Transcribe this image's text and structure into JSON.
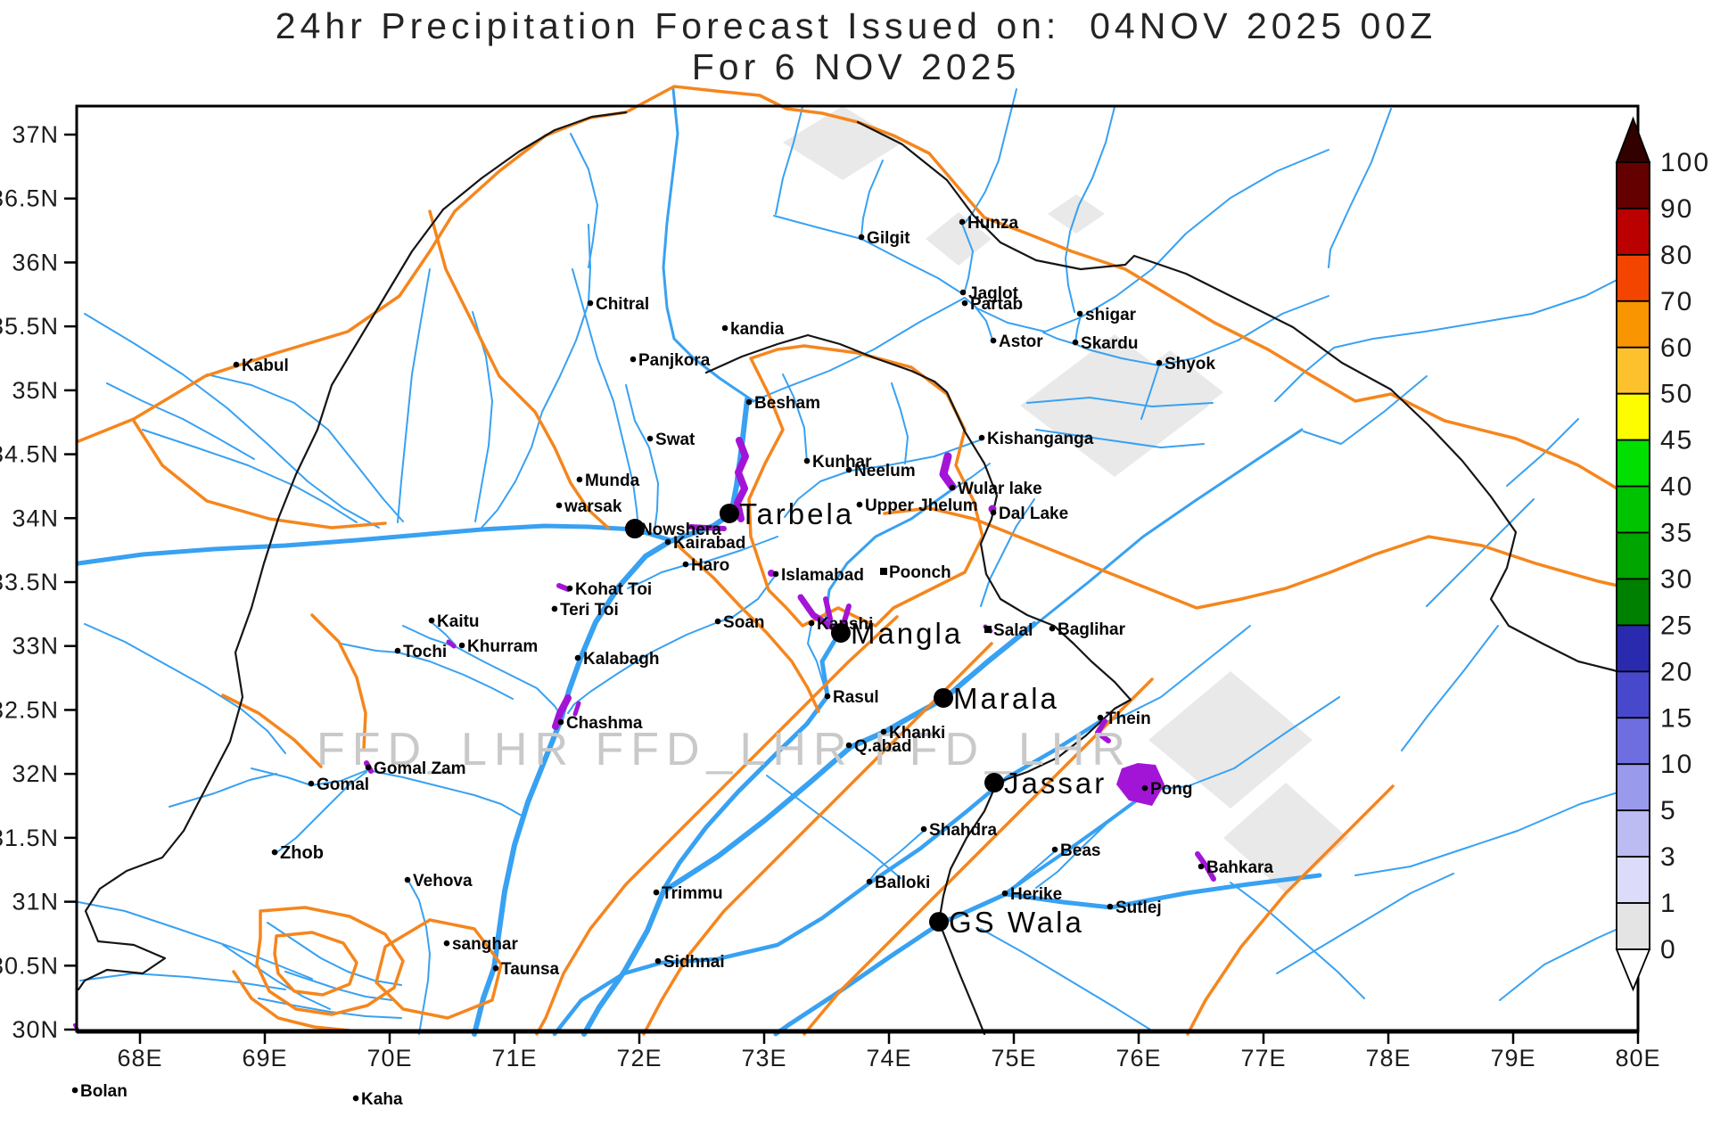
{
  "title": {
    "line1": "24hr Precipitation Forecast Issued on:  04NOV 2025 00Z",
    "line2": "For 6 NOV 2025"
  },
  "watermark": {
    "text": "FFD_LHR FFD_LHR FFD_LHR"
  },
  "axis": {
    "lon_range": [
      67.49,
      80.0
    ],
    "lat_range": [
      30.0,
      37.22
    ],
    "lon_ticks": [
      {
        "v": 68,
        "t": "68E"
      },
      {
        "v": 69,
        "t": "69E"
      },
      {
        "v": 70,
        "t": "70E"
      },
      {
        "v": 71,
        "t": "71E"
      },
      {
        "v": 72,
        "t": "72E"
      },
      {
        "v": 73,
        "t": "73E"
      },
      {
        "v": 74,
        "t": "74E"
      },
      {
        "v": 75,
        "t": "75E"
      },
      {
        "v": 76,
        "t": "76E"
      },
      {
        "v": 77,
        "t": "77E"
      },
      {
        "v": 78,
        "t": "78E"
      },
      {
        "v": 79,
        "t": "79E"
      },
      {
        "v": 80,
        "t": "80E"
      }
    ],
    "lat_ticks": [
      {
        "v": 37,
        "t": "37N"
      },
      {
        "v": 36.5,
        "t": "36.5N"
      },
      {
        "v": 36,
        "t": "36N"
      },
      {
        "v": 35.5,
        "t": "35.5N"
      },
      {
        "v": 35,
        "t": "35N"
      },
      {
        "v": 34.5,
        "t": "34.5N"
      },
      {
        "v": 34,
        "t": "34N"
      },
      {
        "v": 33.5,
        "t": "33.5N"
      },
      {
        "v": 33,
        "t": "33N"
      },
      {
        "v": 32.5,
        "t": "32.5N"
      },
      {
        "v": 32,
        "t": "32N"
      },
      {
        "v": 31.5,
        "t": "31.5N"
      },
      {
        "v": 31,
        "t": "31N"
      },
      {
        "v": 30.5,
        "t": "30.5N"
      },
      {
        "v": 30,
        "t": "30N"
      }
    ]
  },
  "legend": {
    "labels": [
      "100",
      "90",
      "80",
      "70",
      "60",
      "50",
      "45",
      "40",
      "35",
      "30",
      "25",
      "20",
      "15",
      "10",
      "5",
      "3",
      "1",
      "0"
    ],
    "cell_colors": [
      "#650000",
      "#bb0000",
      "#f44500",
      "#f89500",
      "#fcc12d",
      "#fdfd00",
      "#00df00",
      "#00c300",
      "#00a500",
      "#008000",
      "#2a2aae",
      "#4848cd",
      "#6e6ee1",
      "#9a9aec",
      "#bcbcf3",
      "#dcdcfa",
      "#e4e4e4"
    ],
    "above_color": "#330000",
    "below_color": "#ffffff"
  },
  "colors": {
    "river": "#38a1f2",
    "basin_boundary": "#f5861d",
    "border": "#151515",
    "lake": "#a315d6",
    "snow": "#e9e9e9",
    "watermark": "#c9c9c9",
    "text": "#1c1c1c"
  },
  "stations": [
    {
      "name": "Kabul",
      "lon": 68.771,
      "lat": 35.201,
      "m": "dot",
      "s": "small"
    },
    {
      "name": "Chitral",
      "lon": 71.607,
      "lat": 35.682,
      "m": "dot",
      "s": "small"
    },
    {
      "name": "Panjkora",
      "lon": 71.95,
      "lat": 35.243,
      "m": "dot",
      "s": "small"
    },
    {
      "name": "Gilgit",
      "lon": 73.779,
      "lat": 36.198,
      "m": "dot",
      "s": "small"
    },
    {
      "name": "Hunza",
      "lon": 74.586,
      "lat": 36.317,
      "m": "dot",
      "s": "small"
    },
    {
      "name": "Jaglot",
      "lon": 74.593,
      "lat": 35.766,
      "m": "dot",
      "s": "small"
    },
    {
      "name": "Partab",
      "lon": 74.607,
      "lat": 35.682,
      "m": "dot",
      "s": "small"
    },
    {
      "name": "shigar",
      "lon": 75.529,
      "lat": 35.599,
      "m": "dot",
      "s": "small"
    },
    {
      "name": "Astor",
      "lon": 74.836,
      "lat": 35.389,
      "m": "dot",
      "s": "small"
    },
    {
      "name": "Skardu",
      "lon": 75.493,
      "lat": 35.375,
      "m": "dot",
      "s": "small"
    },
    {
      "name": "Shyok",
      "lon": 76.164,
      "lat": 35.215,
      "m": "dot",
      "s": "small"
    },
    {
      "name": "kandia",
      "lon": 72.686,
      "lat": 35.487,
      "m": "dot",
      "s": "small"
    },
    {
      "name": "Besham",
      "lon": 72.879,
      "lat": 34.908,
      "m": "dot",
      "s": "small"
    },
    {
      "name": "Swat",
      "lon": 72.086,
      "lat": 34.622,
      "m": "dot",
      "s": "small"
    },
    {
      "name": "Munda",
      "lon": 71.521,
      "lat": 34.302,
      "m": "dot",
      "s": "small"
    },
    {
      "name": "warsak",
      "lon": 71.357,
      "lat": 34.1,
      "m": "dot",
      "s": "small"
    },
    {
      "name": "Nowshera",
      "lon": 71.964,
      "lat": 33.918,
      "m": "big",
      "s": "small"
    },
    {
      "name": "Tarbela",
      "lon": 72.721,
      "lat": 34.037,
      "m": "big",
      "s": "large"
    },
    {
      "name": "Kairabad",
      "lon": 72.229,
      "lat": 33.814,
      "m": "dot",
      "s": "small"
    },
    {
      "name": "Haro",
      "lon": 72.371,
      "lat": 33.639,
      "m": "dot",
      "s": "small"
    },
    {
      "name": "Kohat Toi",
      "lon": 71.443,
      "lat": 33.451,
      "m": "dot",
      "s": "small"
    },
    {
      "name": "Islamabad",
      "lon": 73.093,
      "lat": 33.563,
      "m": "dot",
      "s": "small"
    },
    {
      "name": "Kunhar",
      "lon": 73.343,
      "lat": 34.448,
      "m": "dot",
      "s": "small"
    },
    {
      "name": "Neelum",
      "lon": 73.679,
      "lat": 34.378,
      "m": "dot",
      "s": "small"
    },
    {
      "name": "Upper Jhelum",
      "lon": 73.764,
      "lat": 34.106,
      "m": "dot",
      "s": "small"
    },
    {
      "name": "Poonch",
      "lon": 73.957,
      "lat": 33.584,
      "m": "square",
      "s": "small"
    },
    {
      "name": "Wular lake",
      "lon": 74.507,
      "lat": 34.239,
      "m": "dot",
      "s": "small"
    },
    {
      "name": "Dal Lake",
      "lon": 74.836,
      "lat": 34.044,
      "m": "dot",
      "s": "small"
    },
    {
      "name": "Kishanganga",
      "lon": 74.743,
      "lat": 34.629,
      "m": "dot",
      "s": "small"
    },
    {
      "name": "Kaitu",
      "lon": 70.336,
      "lat": 33.2,
      "m": "dot",
      "s": "small"
    },
    {
      "name": "Khurram",
      "lon": 70.579,
      "lat": 33.005,
      "m": "dot",
      "s": "small"
    },
    {
      "name": "Tochi",
      "lon": 70.064,
      "lat": 32.963,
      "m": "dot",
      "s": "small"
    },
    {
      "name": "Teri Toi",
      "lon": 71.321,
      "lat": 33.291,
      "m": "dot",
      "s": "small"
    },
    {
      "name": "Kalabagh",
      "lon": 71.507,
      "lat": 32.907,
      "m": "dot",
      "s": "small"
    },
    {
      "name": "Soan",
      "lon": 72.629,
      "lat": 33.193,
      "m": "dot",
      "s": "small"
    },
    {
      "name": "Kanshi",
      "lon": 73.379,
      "lat": 33.179,
      "m": "dot",
      "s": "small"
    },
    {
      "name": "Mangla",
      "lon": 73.614,
      "lat": 33.103,
      "m": "big",
      "s": "large"
    },
    {
      "name": "Salal",
      "lon": 74.793,
      "lat": 33.13,
      "m": "square",
      "s": "small"
    },
    {
      "name": "Baglihar",
      "lon": 75.307,
      "lat": 33.137,
      "m": "dot",
      "s": "small"
    },
    {
      "name": "Rasul",
      "lon": 73.507,
      "lat": 32.607,
      "m": "dot",
      "s": "small"
    },
    {
      "name": "Marala",
      "lon": 74.436,
      "lat": 32.594,
      "m": "big",
      "s": "large"
    },
    {
      "name": "Khanki",
      "lon": 73.957,
      "lat": 32.329,
      "m": "dot",
      "s": "small"
    },
    {
      "name": "Q.abad",
      "lon": 73.679,
      "lat": 32.224,
      "m": "dot",
      "s": "small"
    },
    {
      "name": "Chashma",
      "lon": 71.371,
      "lat": 32.405,
      "m": "dot",
      "s": "small"
    },
    {
      "name": "Thein",
      "lon": 75.693,
      "lat": 32.44,
      "m": "dot",
      "s": "small"
    },
    {
      "name": "Jassar",
      "lon": 74.843,
      "lat": 31.931,
      "m": "big",
      "s": "large"
    },
    {
      "name": "Pong",
      "lon": 76.05,
      "lat": 31.889,
      "m": "dot",
      "s": "small"
    },
    {
      "name": "Gomal Zam",
      "lon": 69.829,
      "lat": 32.05,
      "m": "dot",
      "s": "small"
    },
    {
      "name": "Gomal",
      "lon": 69.371,
      "lat": 31.924,
      "m": "dot",
      "s": "small"
    },
    {
      "name": "Zhob",
      "lon": 69.079,
      "lat": 31.387,
      "m": "dot",
      "s": "bold"
    },
    {
      "name": "Vehova",
      "lon": 70.143,
      "lat": 31.171,
      "m": "dot",
      "s": "small"
    },
    {
      "name": "Shahdra",
      "lon": 74.279,
      "lat": 31.568,
      "m": "dot",
      "s": "small"
    },
    {
      "name": "Beas",
      "lon": 75.329,
      "lat": 31.408,
      "m": "dot",
      "s": "small"
    },
    {
      "name": "Balloki",
      "lon": 73.843,
      "lat": 31.157,
      "m": "dot",
      "s": "small"
    },
    {
      "name": "Herike",
      "lon": 74.929,
      "lat": 31.066,
      "m": "dot",
      "s": "small"
    },
    {
      "name": "Sutlej",
      "lon": 75.771,
      "lat": 30.962,
      "m": "dot",
      "s": "small"
    },
    {
      "name": "GS Wala",
      "lon": 74.4,
      "lat": 30.843,
      "m": "big",
      "s": "large"
    },
    {
      "name": "Trimmu",
      "lon": 72.136,
      "lat": 31.073,
      "m": "dot",
      "s": "small"
    },
    {
      "name": "Sidhnai",
      "lon": 72.15,
      "lat": 30.536,
      "m": "dot",
      "s": "small"
    },
    {
      "name": "sanghar",
      "lon": 70.457,
      "lat": 30.675,
      "m": "dot",
      "s": "small"
    },
    {
      "name": "Taunsa",
      "lon": 70.85,
      "lat": 30.48,
      "m": "dot",
      "s": "small"
    },
    {
      "name": "Bahkara",
      "lon": 76.5,
      "lat": 31.276,
      "m": "dot",
      "s": "small"
    },
    {
      "name": "Bolan",
      "lon": 67.479,
      "lat": 29.526,
      "m": "dot",
      "s": "small"
    },
    {
      "name": "Kaha",
      "lon": 69.729,
      "lat": 29.463,
      "m": "dot",
      "s": "small"
    }
  ],
  "water": {
    "rivers_minor": [
      "95,352 150,385 205,420 255,458 300,498 345,540 385,570 425,592",
      "232,420 282,432 330,452 368,482 400,522 430,560 452,585",
      "160,482 220,502 278,522 330,545 368,566 400,586",
      "482,302 472,360 462,420 456,480 450,540 446,586",
      "660,252 662,300 660,340 646,382 628,422 608,462 596,502 578,540 558,572 540,592",
      "642,302 656,352 670,402 688,450 700,500 710,542 714,572 716,594",
      "702,432 712,472 728,502 738,542 737,572 734,596",
      "120,430 160,450 205,470 245,492 285,515",
      "530,350 545,400 552,450 548,500 540,545 533,585",
      "868,242 920,256 966,268 1012,292 1052,312 1080,330",
      "1079,251 1091,282 1086,312 1081,330",
      "1490,168 1432,192 1380,222 1330,262 1292,302 1252,332 1212,356 1172,372 1130,362 1096,346 1082,334",
      "1082,334 1030,362 980,392 930,416 878,436 845,450",
      "1490,332 1438,352 1388,382 1338,402 1300,410 1258,402 1220,392 1206,386",
      "1212,354 1208,370 1206,385",
      "1206,386 1186,380 1170,373",
      "1560,122 1538,182 1514,232 1492,280 1490,300",
      "1837,302 1778,332 1718,352 1658,362 1598,372 1540,380 1496,390 1460,420 1430,450",
      "1114,384 1106,360 1092,342",
      "905,519 902,480 890,445 878,420",
      "1101,493 1048,512 996,522 954,528 920,540 895,560 880,580",
      "1110,520 1090,535 1070,548",
      "1300,409 1290,440 1280,470",
      "1600,422 1552,462 1504,498 1462,484",
      "1402,702 1352,742 1302,782 1262,802 1240,810",
      "1502,782 1442,822 1384,862 1332,882 1292,886",
      "1837,882 1772,902 1702,932 1642,952 1582,972 1520,982",
      "1680,702 1642,752 1602,802 1572,842",
      "1720,560 1680,600 1640,640 1600,680",
      "1770,470 1730,510 1690,545",
      "1152,452 1222,446 1292,456 1360,452",
      "1162,482 1232,492 1302,502 1350,498",
      "872,642 850,672 822,692 805,698 770,712 730,732 692,756 662,776 644,790 637,800",
      "872,602 832,617 792,630 769,634 742,642 722,652 704,660",
      "910,701 906,722 916,742 922,762 926,776",
      "452,702 482,716 512,726 542,742 572,757 602,772 622,792 630,804",
      "484,698 500,712 511,724",
      "382,722 422,730 447,732 482,742 520,757 552,772 575,784",
      "282,862 322,872 349,881 382,876 412,864 452,872 492,882 532,892 562,902 585,915",
      "308,958 332,940 352,920 372,900 392,880 411,866",
      "190,905 240,890 280,875 310,868",
      "95,700 140,720 185,745 230,770 270,795 300,820 320,845",
      "300,1035 330,1055 360,1075 390,1090 420,1100 450,1105",
      "320,1090 350,1100 380,1110 410,1118 440,1122",
      "290,1120 330,1128 370,1135 410,1140 450,1142",
      "250,1060 280,1080 310,1100 340,1118 370,1132",
      "88,1012 140,1022 200,1042 258,1062 310,1082 350,1098",
      "90,1100 150,1092 210,1096 268,1102 320,1110",
      "458,988 470,1010 478,1040 482,1070 480,1100 475,1130 470,1160",
      "1432,1092 1482,1062 1532,1032 1582,1002 1630,980",
      "1682,1122 1732,1082 1792,1052 1837,1032",
      "1100,1042 1150,1070 1200,1100 1250,1130 1290,1155",
      "1380,990 1420,1020 1460,1055 1500,1090 1530,1120",
      "1183,955 1160,975 1140,992 1128,1001",
      "640,150 660,190 670,230 665,270 660,300",
      "900,120 890,160 878,200 870,240",
      "990,180 975,215 968,245 966,265",
      "1140,100 1130,140 1120,180 1105,215 1090,240 1082,250",
      "1250,120 1240,160 1225,200 1210,230 1200,260 1195,290 1198,320 1205,350",
      "1000,430 1010,460 1018,490 1015,520",
      "1160,560 1140,590 1125,620 1110,650 1100,680",
      "860,870 900,900 940,930 980,960 1010,985",
      "1036,932 1010,955 985,975 975,988",
      "1240,925 1212,952 1186,978 1162,996"
    ],
    "rivers_major": [
      {
        "w": 6,
        "p": "838,448 832,500 826,545 820,576 800,590 772,600 752,607 724,624 694,658 668,698 652,736 638,775 629,808 612,850 592,900 577,948 566,1000 559,1050 554,1086 542,1120 532,1160"
      },
      {
        "w": 5,
        "p": "88,632 160,622 240,616 320,612 400,606 470,600 540,594 610,590 660,591 712,594 752,606"
      },
      {
        "w": 5,
        "p": "940,712 922,742 928,781 905,812 868,848 828,888 792,928 762,968 744,998"
      },
      {
        "w": 6,
        "p": "1160,700 1108,742 1060,783 1022,804 992,821 954,838 908,878 858,920 806,960 744,1000 726,1044 700,1090 672,1130 655,1160"
      },
      {
        "w": 4.5,
        "p": "1236,808 1182,842 1130,872 1082,912 1032,952 976,990 922,1030 872,1060 804,1076 742,1080 700,1092 652,1122 622,1160"
      },
      {
        "w": 5,
        "p": "1480,982 1400,992 1330,1002 1272,1013 1246,1018 1192,1012 1128,1003 1086,1022 1054,1036 1000,1072 942,1112 884,1150 870,1160"
      },
      {
        "w": 4,
        "p": "1288,888 1242,922 1200,952 1162,978 1128,1002"
      },
      {
        "w": 3,
        "p": "1068,549 1022,582 982,602 950,632 930,662 926,692 938,706"
      },
      {
        "w": 3,
        "p": "1460,482 1400,522 1340,562 1282,602 1222,652 1172,692 1122,732 1082,762 1060,782"
      },
      {
        "w": 3,
        "p": "755,100 760,150 754,200 748,250 744,300 748,345 756,380 778,402 808,425 845,450"
      }
    ],
    "lakes": [
      {
        "t": "line",
        "p": "829,494 836,512 828,530 835,548 827,564 831,582",
        "w": 8
      },
      {
        "t": "line",
        "p": "774,591 812,593",
        "w": 6
      },
      {
        "t": "line",
        "p": "898,670 912,690 934,704",
        "w": 7
      },
      {
        "t": "line",
        "p": "926,672 931,694",
        "w": 6
      },
      {
        "t": "line",
        "p": "952,680 946,700",
        "w": 6
      },
      {
        "t": "line",
        "p": "1063,512 1058,532 1068,546",
        "w": 9
      },
      {
        "t": "line",
        "p": "637,783 628,800 623,815",
        "w": 8
      },
      {
        "t": "line",
        "p": "649,789 645,801",
        "w": 5
      },
      {
        "t": "line",
        "p": "1239,809 1231,822 1243,831",
        "w": 6
      },
      {
        "t": "line",
        "p": "1343,958 1353,972 1361,986",
        "w": 6
      },
      {
        "t": "line",
        "p": "627,657 637,661",
        "w": 6
      },
      {
        "t": "line",
        "p": "503,720 509,725",
        "w": 5
      },
      {
        "t": "line",
        "p": "411,856 416,865",
        "w": 6
      },
      {
        "t": "line",
        "p": "1105,703 1111,708",
        "w": 5
      },
      {
        "t": "line",
        "p": "84,1150 88,1157",
        "w": 4
      },
      {
        "t": "poly",
        "p": "1258,862 1276,856 1296,858 1306,880 1292,904 1266,898 1252,880"
      },
      {
        "t": "circle",
        "c": [
          1113,
          571
        ],
        "r": 4.5
      },
      {
        "t": "circle",
        "c": [
          865,
          643
        ],
        "r": 4
      }
    ]
  },
  "boundaries": {
    "basin_orange": [
      "88,495 150,470 230,422 310,396 390,372 448,332 482,282 510,237 560,192 612,152 662,132 702,126 756,97 802,102 852,107 882,122 922,127 962,137 1002,152 1042,172 1066,200 1088,226 1104,244 1152,262 1202,282 1262,302 1312,332 1362,362 1422,392 1472,422 1520,450 1560,442 1620,472 1700,492 1770,522 1837,562",
      "482,237 500,302 530,362 560,422 600,462 622,502 640,542 660,572 682,592",
      "150,472 182,522 232,562 302,582 372,592 432,587",
      "840,560 858,520 878,482 862,442 842,402 872,392 902,388 962,396 1022,412 1062,442 1082,482 1072,522 1092,562 1102,602 1082,642 1042,662 1002,682 982,702 960,692 940,682 920,692 900,702 882,682 862,662 852,632 842,602 840,560",
      "992,576 1042,570 1092,582 1142,602 1192,622 1242,642 1292,662 1342,682 1392,672 1442,660 1492,642 1542,622 1602,602 1662,612 1722,632 1792,652 1837,662",
      "1006,692 952,742 902,792 852,842 802,892 752,942 702,992 662,1042 632,1092 612,1142 602,1160",
      "1112,722 1062,772 1012,822 962,872 912,922 862,972 812,1022 772,1072 742,1122 722,1160",
      "1292,762 1242,812 1192,862 1142,912 1092,962 1042,1012 992,1062 942,1112 902,1160",
      "1562,882 1502,942 1442,1002 1392,1062 1352,1122 1332,1160",
      "482,1032 532,1042 562,1082 552,1122 502,1142 452,1132 422,1102 432,1062 482,1032",
      "292,1022 342,1018 392,1028 432,1048 452,1078 442,1108 412,1128 372,1138 332,1132 302,1112 288,1082 292,1052 292,1022",
      "310,1050 350,1046 385,1058 400,1080 392,1104 362,1116 330,1112 312,1092 308,1070 310,1050",
      "262,1090 282,1120 312,1142 352,1152 392,1156",
      "350,690 380,720 400,760 410,800 408,840",
      "250,780 290,800 330,830 360,860",
      "760,612 800,648 830,680 860,710 888,742 906,772 918,798"
    ],
    "border_black": [
      "497,235 462,282 432,332 402,382 372,432 356,482 332,532 312,582 296,632 282,682 264,732 272,782 258,832 232,882 206,932 182,962 142,977 112,997 96,1022 110,1056 150,1060 185,1075 160,1092 120,1088 95,1100 88,1110",
      "497,235 540,200 582,170 622,146 664,131 702,126",
      "792,418 832,400 872,386 906,376 942,386 982,402 1022,416 1048,428 1062,440 1082,484 1104,520 1118,556 1112,582 1100,610 1106,644 1122,672 1152,690 1182,702 1204,722 1224,742 1250,765 1268,785 1250,795 1218,825 1186,850 1152,866 1118,878 1104,910 1084,940 1066,975 1058,1005 1053,1034 1076,1092 1096,1140 1104,1160",
      "962,137 1012,162 1062,202 1092,242 1122,272 1162,292 1212,302 1262,297 1272,287 1330,307 1390,337 1450,367 1505,407 1560,437 1602,477 1640,517 1672,557 1700,597 1690,637 1672,672 1692,702 1730,722 1770,742 1810,752 1837,762"
    ]
  },
  "snowfields": [
    "945,119 1012,160 945,202 878,160",
    "1075,238 1112,268 1075,298 1038,268",
    "1207,218 1239,240 1207,262 1175,240",
    "1250,375 1356,455 1250,535 1144,455",
    "1312,393 1372,440 1312,487 1252,440",
    "1380,753 1472,830 1380,907 1288,830",
    "1442,878 1512,940 1442,1002 1372,940"
  ]
}
